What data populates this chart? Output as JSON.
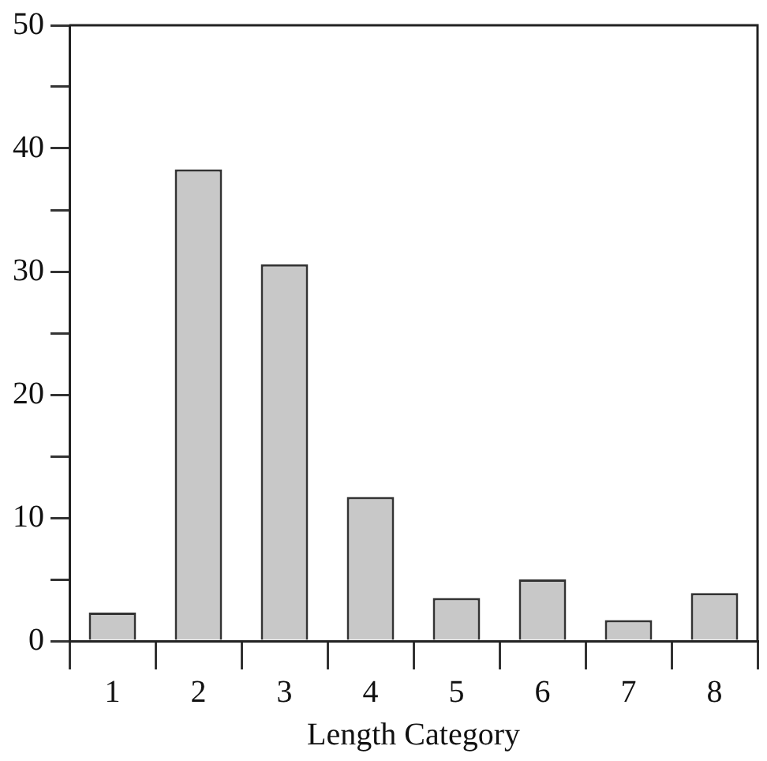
{
  "chart_data": {
    "type": "bar",
    "xlabel": "Length Category",
    "categories": [
      "1",
      "2",
      "3",
      "4",
      "5",
      "6",
      "7",
      "8"
    ],
    "values": [
      2.3,
      38.3,
      30.6,
      11.7,
      3.5,
      5.0,
      1.7,
      3.9
    ],
    "color": "#c8c8c8",
    "ylim": [
      0,
      50
    ],
    "yticks": [
      0,
      {
        "value": 5,
        "label": null
      },
      10,
      {
        "value": 15,
        "label": null
      },
      20,
      {
        "value": 25,
        "label": null
      },
      30,
      {
        "value": 35,
        "label": null
      },
      40,
      {
        "value": 45,
        "label": null
      },
      50
    ],
    "grid": false
  }
}
